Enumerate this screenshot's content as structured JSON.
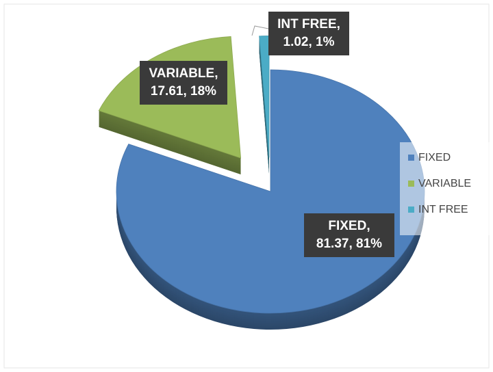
{
  "chart_data": {
    "type": "pie",
    "categories": [
      "FIXED",
      "VARIABLE",
      "INT FREE"
    ],
    "values": [
      81.37,
      17.61,
      1.02
    ],
    "value_labels": [
      "FIXED, 81.37, 81%",
      "VARIABLE, 17.61, 18%",
      "INT FREE, 1.02, 1%"
    ],
    "colors": [
      "#4f81bd",
      "#9bbb59",
      "#4bacc6"
    ],
    "legend": "right"
  }
}
